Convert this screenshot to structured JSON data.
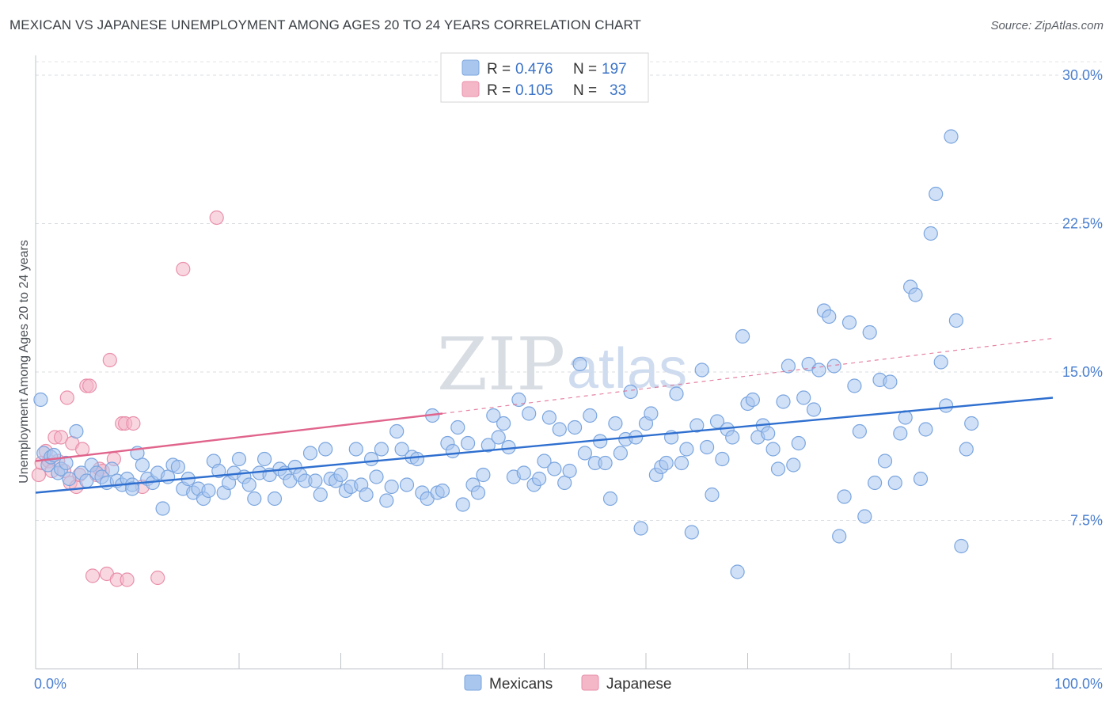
{
  "title": "MEXICAN VS JAPANESE UNEMPLOYMENT AMONG AGES 20 TO 24 YEARS CORRELATION CHART",
  "source": "Source: ZipAtlas.com",
  "watermark": {
    "zip": "ZIP",
    "atlas": "atlas"
  },
  "legend": {
    "rows": [
      {
        "r_label": "R =",
        "r_value": "0.476",
        "n_label": "N =",
        "n_value": "197",
        "color": "#a9c6ee"
      },
      {
        "r_label": "R =",
        "r_value": "0.105",
        "n_label": "N =",
        "n_value": "33",
        "color": "#f4b7c8"
      }
    ]
  },
  "bottom_legend": [
    "Mexicans",
    "Japanese"
  ],
  "chart_data": {
    "type": "scatter",
    "title": "MEXICAN VS JAPANESE UNEMPLOYMENT AMONG AGES 20 TO 24 YEARS CORRELATION CHART",
    "xlabel": "",
    "ylabel": "Unemployment Among Ages 20 to 24 years",
    "xlim": [
      0,
      100
    ],
    "ylim": [
      0,
      31
    ],
    "x_tick_labels": [
      "0.0%",
      "100.0%"
    ],
    "y_ticks": [
      7.5,
      15.0,
      22.5,
      30.0
    ],
    "y_tick_labels": [
      "7.5%",
      "15.0%",
      "22.5%",
      "30.0%"
    ],
    "grid": "horizontal dashed",
    "legend_position": "top-center",
    "series": [
      {
        "name": "Mexicans",
        "color": "#a9c6ee",
        "stroke": "#7aa5df",
        "trend": {
          "x0": 0,
          "y0": 8.9,
          "x1": 100,
          "y1": 13.7,
          "color": "#2f6fcf"
        },
        "points": [
          [
            0.5,
            13.6
          ],
          [
            0.8,
            10.9
          ],
          [
            1.2,
            10.3
          ],
          [
            1.5,
            10.7
          ],
          [
            1.8,
            10.8
          ],
          [
            2.2,
            9.9
          ],
          [
            2.5,
            10.1
          ],
          [
            3,
            10.4
          ],
          [
            3.3,
            9.6
          ],
          [
            4,
            12
          ],
          [
            4.5,
            9.9
          ],
          [
            5,
            9.5
          ],
          [
            5.5,
            10.3
          ],
          [
            6,
            9.9
          ],
          [
            6.5,
            9.7
          ],
          [
            7,
            9.4
          ],
          [
            7.5,
            10.1
          ],
          [
            8,
            9.5
          ],
          [
            8.5,
            9.3
          ],
          [
            9,
            9.6
          ],
          [
            9.5,
            9.3
          ],
          [
            9.5,
            9.1
          ],
          [
            10,
            10.9
          ],
          [
            10.5,
            10.3
          ],
          [
            11,
            9.6
          ],
          [
            11.5,
            9.4
          ],
          [
            12,
            9.9
          ],
          [
            12.5,
            8.1
          ],
          [
            13,
            9.7
          ],
          [
            13.5,
            10.3
          ],
          [
            14,
            10.2
          ],
          [
            14.5,
            9.1
          ],
          [
            15,
            9.6
          ],
          [
            15.5,
            8.9
          ],
          [
            16,
            9.1
          ],
          [
            16.5,
            8.6
          ],
          [
            17,
            9.0
          ],
          [
            17.5,
            10.5
          ],
          [
            18,
            10.0
          ],
          [
            18.5,
            8.9
          ],
          [
            19,
            9.4
          ],
          [
            19.5,
            9.9
          ],
          [
            20,
            10.6
          ],
          [
            20.5,
            9.7
          ],
          [
            21,
            9.3
          ],
          [
            21.5,
            8.6
          ],
          [
            22,
            9.9
          ],
          [
            22.5,
            10.6
          ],
          [
            23,
            9.8
          ],
          [
            23.5,
            8.6
          ],
          [
            24,
            10.1
          ],
          [
            24.5,
            9.9
          ],
          [
            25,
            9.5
          ],
          [
            25.5,
            10.2
          ],
          [
            26,
            9.8
          ],
          [
            26.5,
            9.5
          ],
          [
            27,
            10.9
          ],
          [
            27.5,
            9.5
          ],
          [
            28,
            8.8
          ],
          [
            28.5,
            11.1
          ],
          [
            29,
            9.6
          ],
          [
            29.5,
            9.5
          ],
          [
            30,
            9.8
          ],
          [
            30.5,
            9.0
          ],
          [
            31,
            9.2
          ],
          [
            31.5,
            11.1
          ],
          [
            32,
            9.3
          ],
          [
            32.5,
            8.8
          ],
          [
            33,
            10.6
          ],
          [
            33.5,
            9.7
          ],
          [
            34,
            11.1
          ],
          [
            34.5,
            8.5
          ],
          [
            35,
            9.2
          ],
          [
            35.5,
            12.0
          ],
          [
            36,
            11.1
          ],
          [
            36.5,
            9.3
          ],
          [
            37,
            10.7
          ],
          [
            37.5,
            10.6
          ],
          [
            38,
            8.9
          ],
          [
            38.5,
            8.6
          ],
          [
            39,
            12.8
          ],
          [
            39.5,
            8.9
          ],
          [
            40,
            9.0
          ],
          [
            40.5,
            11.4
          ],
          [
            41,
            11.0
          ],
          [
            41.5,
            12.2
          ],
          [
            42,
            8.3
          ],
          [
            42.5,
            11.4
          ],
          [
            43,
            9.3
          ],
          [
            43.5,
            8.9
          ],
          [
            44,
            9.8
          ],
          [
            44.5,
            11.3
          ],
          [
            45,
            12.8
          ],
          [
            45.5,
            11.7
          ],
          [
            46,
            12.4
          ],
          [
            46.5,
            11.2
          ],
          [
            47,
            9.7
          ],
          [
            47.5,
            13.6
          ],
          [
            48,
            9.9
          ],
          [
            48.5,
            12.9
          ],
          [
            49,
            9.3
          ],
          [
            49.5,
            9.6
          ],
          [
            50,
            10.5
          ],
          [
            50.5,
            12.7
          ],
          [
            51,
            10.1
          ],
          [
            51.5,
            12.1
          ],
          [
            52,
            9.4
          ],
          [
            52.5,
            10.0
          ],
          [
            53,
            12.2
          ],
          [
            53.5,
            15.4
          ],
          [
            54,
            10.9
          ],
          [
            54.5,
            12.8
          ],
          [
            55,
            10.4
          ],
          [
            55.5,
            11.5
          ],
          [
            56,
            10.4
          ],
          [
            56.5,
            8.6
          ],
          [
            57,
            12.4
          ],
          [
            57.5,
            10.9
          ],
          [
            58,
            11.6
          ],
          [
            58.5,
            14.0
          ],
          [
            59,
            11.7
          ],
          [
            59.5,
            7.1
          ],
          [
            60,
            12.4
          ],
          [
            60.5,
            12.9
          ],
          [
            61,
            9.8
          ],
          [
            61.5,
            10.2
          ],
          [
            62,
            10.4
          ],
          [
            62.5,
            11.7
          ],
          [
            63,
            13.9
          ],
          [
            63.5,
            10.4
          ],
          [
            64,
            11.1
          ],
          [
            64.5,
            6.9
          ],
          [
            65,
            12.3
          ],
          [
            65.5,
            15.1
          ],
          [
            66,
            11.2
          ],
          [
            66.5,
            8.8
          ],
          [
            67,
            12.5
          ],
          [
            67.5,
            10.6
          ],
          [
            68,
            12.1
          ],
          [
            68.5,
            11.7
          ],
          [
            69,
            4.9
          ],
          [
            69.5,
            16.8
          ],
          [
            70,
            13.4
          ],
          [
            70.5,
            13.6
          ],
          [
            71,
            11.7
          ],
          [
            71.5,
            12.3
          ],
          [
            72,
            11.9
          ],
          [
            72.5,
            11.1
          ],
          [
            73,
            10.1
          ],
          [
            73.5,
            13.5
          ],
          [
            74,
            15.3
          ],
          [
            74.5,
            10.3
          ],
          [
            75,
            11.4
          ],
          [
            75.5,
            13.7
          ],
          [
            76,
            15.4
          ],
          [
            76.5,
            13.1
          ],
          [
            77,
            15.1
          ],
          [
            77.5,
            18.1
          ],
          [
            78,
            17.8
          ],
          [
            78.5,
            15.3
          ],
          [
            79,
            6.7
          ],
          [
            79.5,
            8.7
          ],
          [
            80,
            17.5
          ],
          [
            80.5,
            14.3
          ],
          [
            81,
            12.0
          ],
          [
            81.5,
            7.7
          ],
          [
            82,
            17.0
          ],
          [
            82.5,
            9.4
          ],
          [
            83,
            14.6
          ],
          [
            83.5,
            10.5
          ],
          [
            84,
            14.5
          ],
          [
            84.5,
            9.4
          ],
          [
            85,
            11.9
          ],
          [
            85.5,
            12.7
          ],
          [
            86,
            19.3
          ],
          [
            86.5,
            18.9
          ],
          [
            87,
            9.6
          ],
          [
            87.5,
            12.1
          ],
          [
            88,
            22.0
          ],
          [
            88.5,
            24.0
          ],
          [
            89,
            15.5
          ],
          [
            89.5,
            13.3
          ],
          [
            90,
            26.9
          ],
          [
            90.5,
            17.6
          ],
          [
            91,
            6.2
          ],
          [
            91.5,
            11.1
          ],
          [
            92,
            12.4
          ]
        ]
      },
      {
        "name": "Japanese",
        "color": "#f4b7c8",
        "stroke": "#e98faa",
        "trend": {
          "x0": 0,
          "y0": 10.5,
          "x1": 40,
          "y1": 12.9,
          "color": "#e0648c",
          "dashed_to": {
            "x1": 100,
            "y1": 16.7
          }
        },
        "points": [
          [
            0.3,
            9.8
          ],
          [
            0.6,
            10.4
          ],
          [
            1.0,
            11.0
          ],
          [
            1.3,
            10.5
          ],
          [
            1.6,
            10.0
          ],
          [
            1.9,
            11.7
          ],
          [
            2.2,
            10.5
          ],
          [
            2.5,
            11.7
          ],
          [
            2.8,
            10.0
          ],
          [
            3.1,
            13.7
          ],
          [
            3.4,
            9.4
          ],
          [
            3.6,
            11.4
          ],
          [
            4.0,
            9.2
          ],
          [
            4.3,
            9.8
          ],
          [
            4.6,
            11.1
          ],
          [
            5.0,
            14.3
          ],
          [
            5.3,
            14.3
          ],
          [
            5.6,
            4.7
          ],
          [
            6.0,
            9.8
          ],
          [
            6.3,
            10.1
          ],
          [
            6.6,
            10.0
          ],
          [
            7.0,
            4.8
          ],
          [
            7.3,
            15.6
          ],
          [
            7.7,
            10.6
          ],
          [
            8.0,
            4.5
          ],
          [
            8.5,
            12.4
          ],
          [
            8.8,
            12.4
          ],
          [
            9.0,
            4.5
          ],
          [
            9.6,
            12.4
          ],
          [
            10.5,
            9.2
          ],
          [
            12.0,
            4.6
          ],
          [
            14.5,
            20.2
          ],
          [
            17.8,
            22.8
          ]
        ]
      }
    ]
  }
}
